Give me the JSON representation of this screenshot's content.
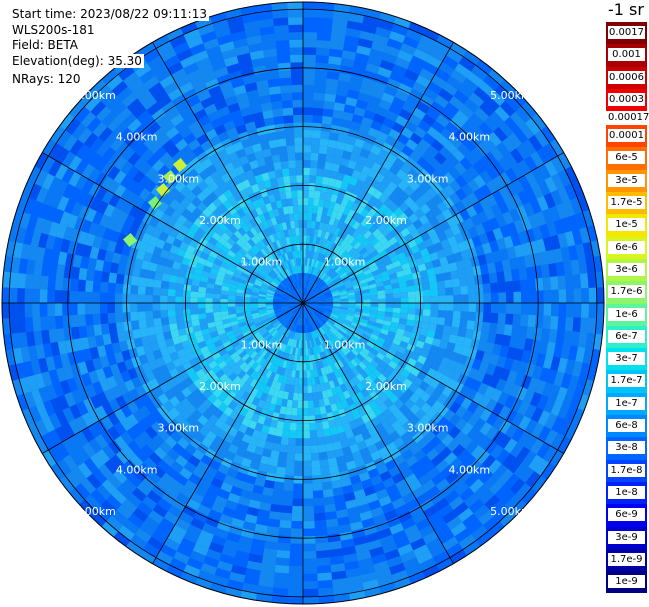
{
  "info": {
    "start_time": "Start time: 2023/08/22 09:11:13",
    "instrument": "WLS200s-181",
    "field": "Field: BETA",
    "elevation": "Elevation(deg): 35.30",
    "nrays": "NRays: 120"
  },
  "colorbar": {
    "title": "-1 sr",
    "cells": [
      {
        "label": "0.0017",
        "color": "#7f0000"
      },
      {
        "label": "0.001",
        "color": "#a80000"
      },
      {
        "label": "0.0006",
        "color": "#cc0000"
      },
      {
        "label": "0.0003",
        "color": "#f00000"
      },
      {
        "label": "0.00017",
        "color": "#ffffff"
      },
      {
        "label": "0.0001",
        "color": "#ff4500"
      },
      {
        "label": "6e-5",
        "color": "#ff6e00"
      },
      {
        "label": "3e-5",
        "color": "#ff9400"
      },
      {
        "label": "1.7e-5",
        "color": "#ffbb00"
      },
      {
        "label": "1e-5",
        "color": "#f5e600"
      },
      {
        "label": "6e-6",
        "color": "#d8f51e"
      },
      {
        "label": "3e-6",
        "color": "#b3f545"
      },
      {
        "label": "1.7e-6",
        "color": "#8cf56b"
      },
      {
        "label": "1e-6",
        "color": "#5cf59a"
      },
      {
        "label": "6e-7",
        "color": "#2ef0c8"
      },
      {
        "label": "3e-7",
        "color": "#00e0f0"
      },
      {
        "label": "1.7e-7",
        "color": "#00c4f8"
      },
      {
        "label": "1e-7",
        "color": "#00a8ff"
      },
      {
        "label": "6e-8",
        "color": "#0088ff"
      },
      {
        "label": "3e-8",
        "color": "#0066ff"
      },
      {
        "label": "1.7e-8",
        "color": "#0044ff"
      },
      {
        "label": "1e-8",
        "color": "#0024f8"
      },
      {
        "label": "6e-9",
        "color": "#0000f0"
      },
      {
        "label": "3e-9",
        "color": "#0000cc"
      },
      {
        "label": "1.7e-9",
        "color": "#0000a8"
      },
      {
        "label": "1e-9",
        "color": "#000080"
      }
    ]
  },
  "range_rings": [
    {
      "label": "1.00km",
      "km": 1
    },
    {
      "label": "2.00km",
      "km": 2
    },
    {
      "label": "3.00km",
      "km": 3
    },
    {
      "label": "4.00km",
      "km": 4
    },
    {
      "label": "5.00km",
      "km": 5
    }
  ],
  "max_range_km": 5.12,
  "spoke_count": 12
}
